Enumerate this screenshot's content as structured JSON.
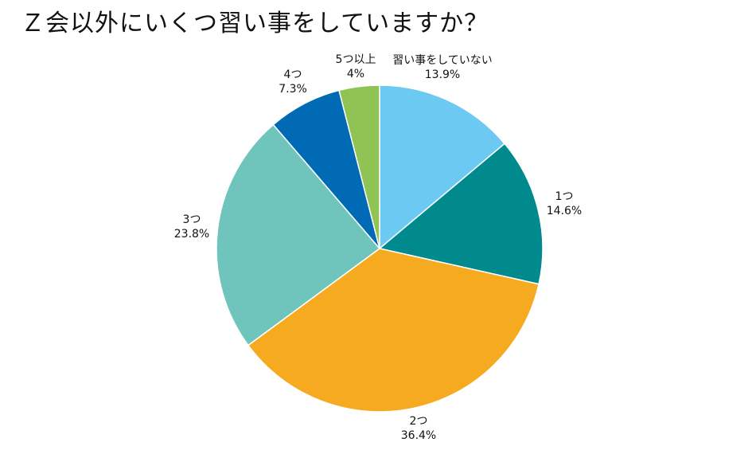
{
  "chart_data": {
    "type": "pie",
    "title": "Ｚ会以外にいくつ習い事をしていますか？",
    "slices": [
      {
        "label": "習い事をしていない",
        "value": 13.9,
        "display": "13.9%",
        "color": "#6cc9f2"
      },
      {
        "label": "1つ",
        "value": 14.6,
        "display": "14.6%",
        "color": "#008a8e"
      },
      {
        "label": "2つ",
        "value": 36.4,
        "display": "36.4%",
        "color": "#f6aa1f"
      },
      {
        "label": "3つ",
        "value": 23.8,
        "display": "23.8%",
        "color": "#6fc5bb"
      },
      {
        "label": "4つ",
        "value": 7.3,
        "display": "7.3%",
        "color": "#006ab5"
      },
      {
        "label": "5つ以上",
        "value": 4,
        "display": "4%",
        "color": "#8fc455"
      }
    ],
    "start": "12 o'clock",
    "direction": "clockwise"
  }
}
